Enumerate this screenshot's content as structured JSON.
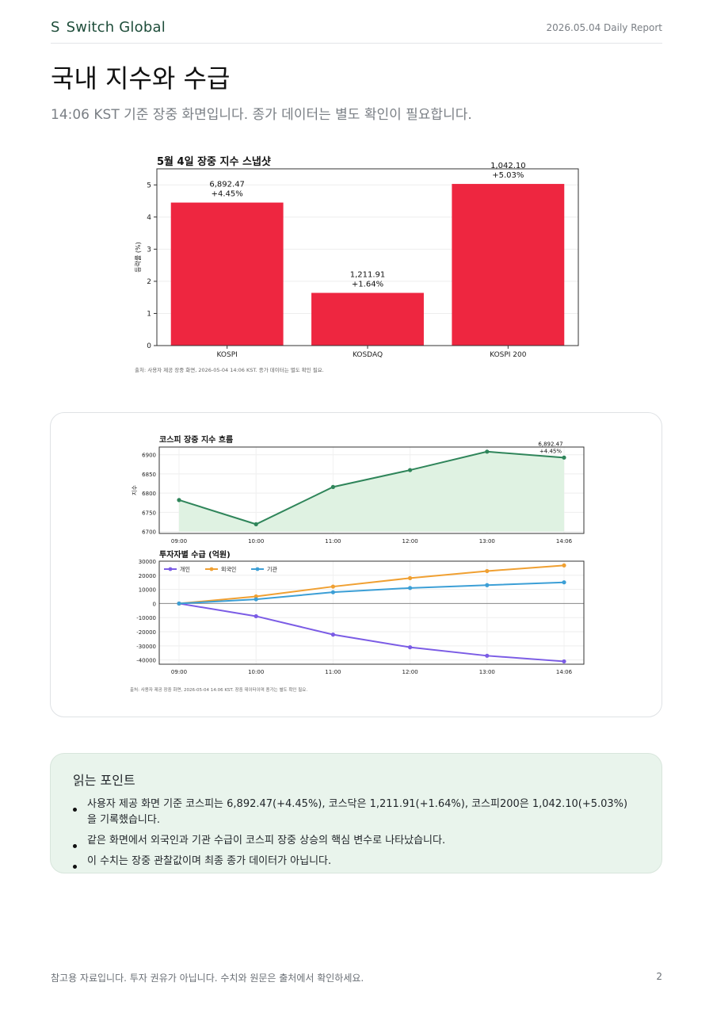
{
  "header": {
    "brand_mark": "S",
    "brand_name": "Switch Global",
    "report_date": "2026.05.04 Daily Report"
  },
  "page": {
    "title": "국내 지수와 수급",
    "subtitle": "14:06 KST 기준 장중 화면입니다. 종가 데이터는 별도 확인이 필요합니다."
  },
  "chart_data": [
    {
      "type": "bar",
      "title": "5월 4일 장중 지수 스냅샷",
      "ylabel": "등락률 (%)",
      "xlabel": "",
      "categories": [
        "KOSPI",
        "KOSDAQ",
        "KOSPI 200"
      ],
      "values": [
        4.45,
        1.64,
        5.03
      ],
      "value_labels": [
        "6,892.47",
        "1,211.91",
        "1,042.10"
      ],
      "change_labels": [
        "+4.45%",
        "+1.64%",
        "+5.03%"
      ],
      "ylim": [
        0,
        5.5
      ],
      "yticks": [
        0,
        1,
        2,
        3,
        4,
        5
      ],
      "bar_color": "#ee2640",
      "grid": true,
      "source": "출처: 사용자 제공 장중 화면, 2026-05-04 14:06 KST. 종가 데이터는 별도 확인 필요."
    },
    {
      "type": "area",
      "title": "코스피 장중 지수 흐름",
      "ylabel": "지수",
      "xlabel": "",
      "x": [
        "09:00",
        "10:00",
        "11:00",
        "12:00",
        "13:00",
        "14:06"
      ],
      "values": [
        6782,
        6719,
        6816,
        6860,
        6908,
        6892.47
      ],
      "ylim": [
        6695,
        6920
      ],
      "yticks": [
        6700,
        6750,
        6800,
        6850,
        6900
      ],
      "last_label": "6,892.47",
      "last_change": "+4.45%",
      "line_color": "#2f855a",
      "fill_color": "#dff2e2",
      "grid": true
    },
    {
      "type": "line",
      "title": "투자자별 수급 (억원)",
      "ylabel": "",
      "xlabel": "",
      "x": [
        "09:00",
        "10:00",
        "11:00",
        "12:00",
        "13:00",
        "14:06"
      ],
      "series": [
        {
          "name": "개인",
          "values": [
            0,
            -9000,
            -22000,
            -31000,
            -37000,
            -41000
          ],
          "color": "#7b5ce5"
        },
        {
          "name": "외국인",
          "values": [
            0,
            5000,
            12000,
            18000,
            23000,
            27000
          ],
          "color": "#f0a032"
        },
        {
          "name": "기관",
          "values": [
            0,
            3000,
            8000,
            11000,
            13000,
            15000
          ],
          "color": "#3c9fd6"
        }
      ],
      "ylim": [
        -43000,
        30000
      ],
      "yticks": [
        -40000,
        -30000,
        -20000,
        -10000,
        0,
        10000,
        20000,
        30000
      ],
      "legend": "top-left",
      "grid": true,
      "source": "출처: 사용자 제공 장중 화면, 2026-05-04 14:06 KST. 장중 데이터이며 종가는 별도 확인 필요."
    }
  ],
  "reading_points": {
    "title": "읽는 포인트",
    "items": [
      "사용자 제공 화면 기준 코스피는 6,892.47(+4.45%), 코스닥은 1,211.91(+1.64%), 코스피200은 1,042.10(+5.03%)을 기록했습니다.",
      "같은 화면에서 외국인과 기관 수급이 코스피 장중 상승의 핵심 변수로 나타났습니다.",
      "이 수치는 장중 관찰값이며 최종 종가 데이터가 아닙니다."
    ]
  },
  "footer": {
    "note": "참고용 자료입니다. 투자 권유가 아닙니다. 수치와 원문은 출처에서 확인하세요.",
    "page_number": "2"
  }
}
